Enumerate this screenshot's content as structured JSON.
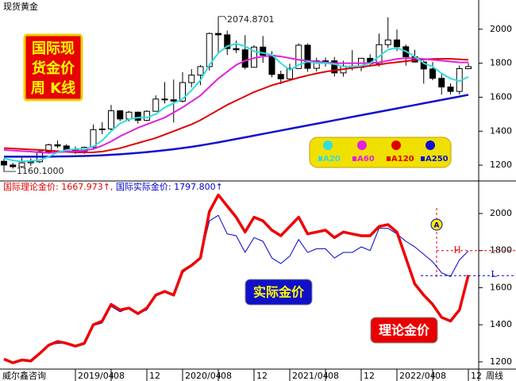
{
  "header": {
    "title": "现货黄金",
    "box_lines": [
      "国际现",
      "货金价",
      "周  K线"
    ],
    "footer_left": "威尔鑫咨询",
    "footer_right": "周线"
  },
  "chart_data": [
    {
      "type": "candlestick",
      "open": [
        1223,
        1201,
        1191,
        1214,
        1220,
        1280,
        1320,
        1313,
        1292,
        1283,
        1305,
        1409,
        1413,
        1520,
        1472,
        1512,
        1464,
        1517,
        1589,
        1585,
        1577,
        1686,
        1730,
        1780,
        1975,
        1967,
        1886,
        1879,
        1776,
        1895,
        1847,
        1734,
        1708,
        1769,
        1906,
        1770,
        1814,
        1814,
        1743,
        1783,
        1775,
        1829,
        1797,
        1909,
        1937,
        1897,
        1838,
        1807,
        1766,
        1711,
        1660,
        1634,
        1768
      ],
      "high": [
        1237,
        1214,
        1243,
        1240,
        1285,
        1326,
        1346,
        1324,
        1310,
        1310,
        1439,
        1453,
        1555,
        1524,
        1519,
        1516,
        1524,
        1611,
        1689,
        1704,
        1747,
        1765,
        1789,
        1981,
        2074.8701,
        1992,
        1933,
        1965,
        1906,
        1960,
        1871,
        1756,
        1798,
        1917,
        1916,
        1832,
        1834,
        1837,
        1814,
        1877,
        1831,
        1853,
        1974,
        2070,
        1998,
        1910,
        1879,
        1814,
        1807,
        1735,
        1682,
        1786,
        1800
      ],
      "low": [
        1160.1,
        1180,
        1183,
        1196,
        1212,
        1266,
        1300,
        1281,
        1266,
        1266,
        1296,
        1382,
        1400,
        1459,
        1458,
        1445,
        1459,
        1517,
        1563,
        1451,
        1568,
        1658,
        1671,
        1757,
        1863,
        1848,
        1860,
        1764,
        1775,
        1802,
        1717,
        1677,
        1706,
        1765,
        1750,
        1752,
        1780,
        1722,
        1721,
        1758,
        1753,
        1780,
        1780,
        1890,
        1872,
        1786,
        1805,
        1680,
        1700,
        1615,
        1617,
        1616,
        1765
      ],
      "close": [
        1201,
        1191,
        1214,
        1220,
        1280,
        1320,
        1313,
        1292,
        1283,
        1305,
        1409,
        1413,
        1520,
        1472,
        1512,
        1464,
        1517,
        1589,
        1585,
        1577,
        1686,
        1730,
        1780,
        1975,
        1967,
        1886,
        1879,
        1776,
        1895,
        1847,
        1734,
        1708,
        1769,
        1906,
        1770,
        1814,
        1814,
        1743,
        1783,
        1775,
        1829,
        1797,
        1909,
        1937,
        1897,
        1838,
        1807,
        1766,
        1711,
        1660,
        1634,
        1768,
        1780
      ],
      "high_label": "2074.8701",
      "low_label": "1160.1000",
      "series": [
        {
          "name": "A20",
          "color": "#33dddd",
          "values": [
            1240,
            1228,
            1222,
            1225,
            1230,
            1250,
            1275,
            1290,
            1295,
            1295,
            1310,
            1345,
            1400,
            1445,
            1470,
            1480,
            1480,
            1500,
            1540,
            1565,
            1590,
            1640,
            1700,
            1790,
            1860,
            1900,
            1915,
            1900,
            1870,
            1860,
            1850,
            1800,
            1760,
            1790,
            1810,
            1800,
            1800,
            1795,
            1780,
            1780,
            1785,
            1800,
            1840,
            1880,
            1890,
            1870,
            1840,
            1800,
            1780,
            1740,
            1710,
            1695,
            1720
          ]
        },
        {
          "name": "A60",
          "color": "#e020e0",
          "values": [
            1290,
            1286,
            1283,
            1280,
            1275,
            1272,
            1275,
            1280,
            1283,
            1286,
            1295,
            1315,
            1340,
            1370,
            1395,
            1420,
            1440,
            1460,
            1480,
            1510,
            1540,
            1575,
            1610,
            1660,
            1710,
            1750,
            1790,
            1815,
            1830,
            1840,
            1845,
            1840,
            1830,
            1820,
            1815,
            1810,
            1805,
            1800,
            1800,
            1800,
            1800,
            1800,
            1805,
            1815,
            1825,
            1830,
            1830,
            1825,
            1820,
            1815,
            1810,
            1805,
            1805
          ]
        },
        {
          "name": "A120",
          "color": "#e00000",
          "values": [
            1300,
            1298,
            1295,
            1292,
            1290,
            1286,
            1282,
            1278,
            1276,
            1275,
            1276,
            1280,
            1290,
            1300,
            1315,
            1330,
            1345,
            1360,
            1380,
            1400,
            1420,
            1440,
            1465,
            1495,
            1525,
            1555,
            1580,
            1605,
            1630,
            1650,
            1670,
            1685,
            1700,
            1715,
            1728,
            1740,
            1750,
            1758,
            1765,
            1772,
            1778,
            1785,
            1792,
            1800,
            1806,
            1812,
            1818,
            1822,
            1825,
            1826,
            1826,
            1823,
            1820
          ]
        },
        {
          "name": "A250",
          "color": "#1010d0",
          "values": [
            1250,
            1250,
            1250,
            1250,
            1250,
            1250,
            1251,
            1252,
            1253,
            1254,
            1256,
            1258,
            1261,
            1264,
            1268,
            1272,
            1277,
            1282,
            1288,
            1294,
            1301,
            1308,
            1316,
            1325,
            1334,
            1344,
            1354,
            1364,
            1374,
            1384,
            1394,
            1404,
            1414,
            1424,
            1434,
            1444,
            1454,
            1464,
            1474,
            1484,
            1494,
            1504,
            1514,
            1524,
            1534,
            1544,
            1554,
            1564,
            1574,
            1584,
            1594,
            1604,
            1614
          ]
        }
      ],
      "ylim": [
        1107,
        2172
      ],
      "yticks": [
        1200,
        1400,
        1600,
        1800,
        2000
      ]
    },
    {
      "type": "line",
      "categories": [
        null,
        null,
        null,
        null,
        null,
        null,
        null,
        null,
        "2019/04",
        null,
        null,
        null,
        "08",
        null,
        null,
        null,
        "12",
        null,
        null,
        null,
        "2020/04",
        null,
        null,
        null,
        "08",
        null,
        null,
        null,
        "12",
        null,
        null,
        null,
        "2021/04",
        null,
        null,
        null,
        "08",
        null,
        null,
        null,
        "12",
        null,
        null,
        null,
        "2022/04",
        null,
        null,
        null,
        "08",
        null,
        null,
        null,
        "12"
      ],
      "series": [
        {
          "name": "理论金价",
          "color": "#ee0000",
          "readout": "国际理论金价: 1667.973↑,",
          "values": [
            1215,
            1195,
            1210,
            1205,
            1245,
            1290,
            1310,
            1300,
            1285,
            1300,
            1400,
            1420,
            1510,
            1480,
            1490,
            1460,
            1490,
            1560,
            1580,
            1560,
            1690,
            1720,
            1760,
            2010,
            2100,
            2040,
            1980,
            1900,
            1980,
            1960,
            1910,
            1880,
            1930,
            1980,
            1890,
            1900,
            1910,
            1870,
            1900,
            1890,
            1880,
            1880,
            1930,
            1940,
            1900,
            1760,
            1620,
            1560,
            1510,
            1440,
            1420,
            1480,
            1667.973
          ]
        },
        {
          "name": "实际金价",
          "color": "#0000cc",
          "readout": "国际实际金价: 1797.800↑",
          "values": [
            1215,
            1195,
            1210,
            1205,
            1245,
            1290,
            1300,
            1300,
            1285,
            1295,
            1395,
            1410,
            1500,
            1470,
            1490,
            1460,
            1480,
            1560,
            1580,
            1560,
            1680,
            1720,
            1760,
            1960,
            1990,
            1890,
            1880,
            1790,
            1870,
            1850,
            1760,
            1730,
            1770,
            1860,
            1790,
            1810,
            1810,
            1760,
            1790,
            1790,
            1820,
            1800,
            1920,
            1920,
            1890,
            1850,
            1820,
            1780,
            1740,
            1680,
            1660,
            1750,
            1797.8
          ]
        }
      ],
      "reference_lines": [
        {
          "label": "H",
          "value": 1800,
          "color": "#e00000"
        },
        {
          "label": "L",
          "value": 1665,
          "color": "#0000e0"
        }
      ],
      "marker_label": "A",
      "ylim": [
        1161,
        2171
      ],
      "yticks": [
        1200,
        1400,
        1600,
        1800,
        2000
      ]
    }
  ]
}
